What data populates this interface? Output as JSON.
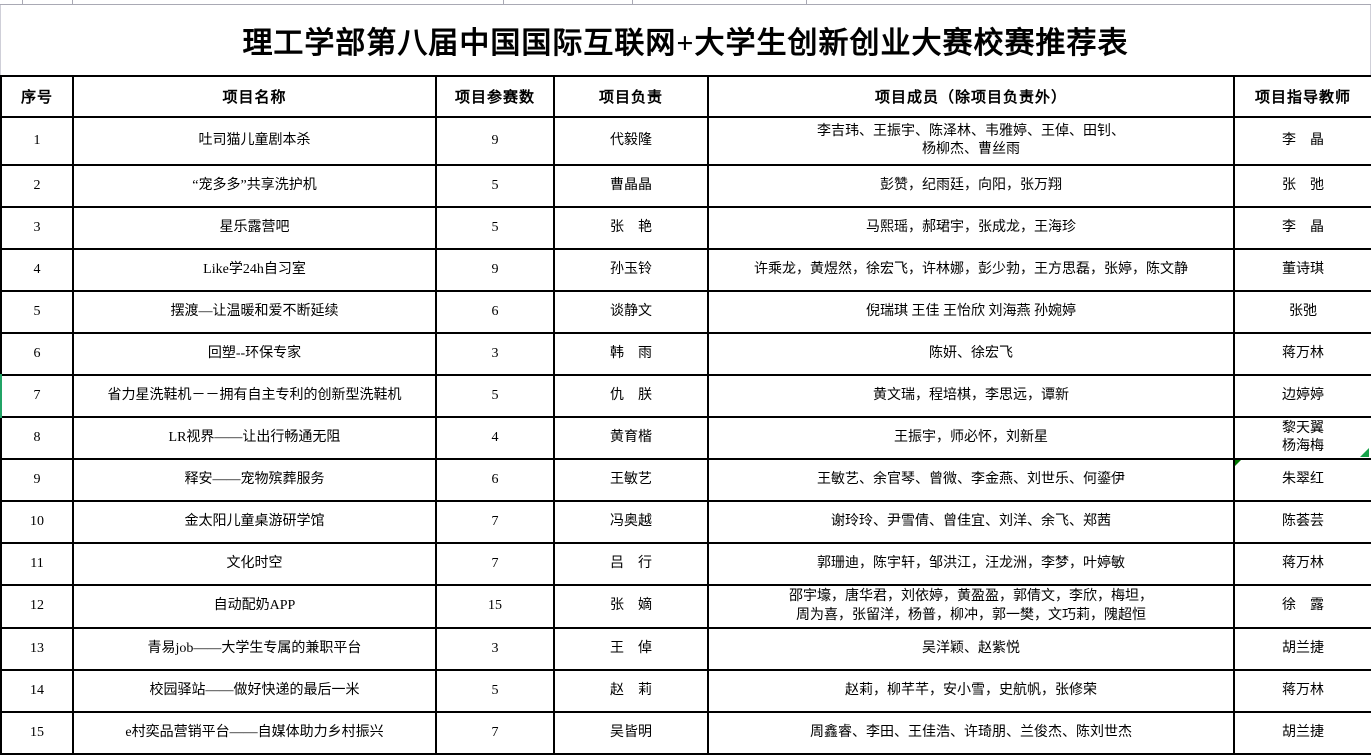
{
  "title": "理工学部第八届中国国际互联网+大学生创新创业大赛校赛推荐表",
  "table": {
    "columns": [
      "序号",
      "项目名称",
      "项目参赛数",
      "项目负责",
      "项目成员（除项目负责外）",
      "项目指导教师"
    ],
    "rows": [
      {
        "no": "1",
        "name": "吐司猫儿童剧本杀",
        "count": "9",
        "leader": "代毅隆",
        "members": "李吉玮、王振宇、陈泽林、韦雅婷、王倬、田钊、\n杨柳杰、曹丝雨",
        "advisor": "李　晶"
      },
      {
        "no": "2",
        "name": "“宠多多”共享洗护机",
        "count": "5",
        "leader": "曹晶晶",
        "members": "彭赞，纪雨廷，向阳，张万翔",
        "advisor": "张　弛"
      },
      {
        "no": "3",
        "name": "星乐露营吧",
        "count": "5",
        "leader": "张　艳",
        "members": "马熙瑶，郝珺宇，张成龙，王海珍",
        "advisor": "李　晶"
      },
      {
        "no": "4",
        "name": "Like学24h自习室",
        "count": "9",
        "leader": "孙玉铃",
        "members": "许乘龙，黄煜然，徐宏飞，许林娜，彭少勃，王方思磊，张婷，陈文静",
        "advisor": "董诗琪"
      },
      {
        "no": "5",
        "name": "摆渡—让温暖和爱不断延续",
        "count": "6",
        "leader": "谈静文",
        "members": "倪瑞琪 王佳 王怡欣 刘海燕 孙婉婷",
        "advisor": "张弛"
      },
      {
        "no": "6",
        "name": "回塑--环保专家",
        "count": "3",
        "leader": "韩　雨",
        "members": "陈妍、徐宏飞",
        "advisor": "蒋万林"
      },
      {
        "no": "7",
        "name": "省力星洗鞋机－－拥有自主专利的创新型洗鞋机",
        "count": "5",
        "leader": "仇　朕",
        "members": "黄文瑞，程培棋，李思远，谭新",
        "advisor": "边婷婷",
        "selected_edge": true
      },
      {
        "no": "8",
        "name": "LR视界——让出行畅通无阻",
        "count": "4",
        "leader": "黄育楷",
        "members": "王振宇，师必怀，刘新星",
        "advisor": "黎天翼\n杨海梅"
      },
      {
        "no": "9",
        "name": "释安——宠物殡葬服务",
        "count": "6",
        "leader": "王敏艺",
        "members": "王敏艺、余官琴、曾微、李金燕、刘世乐、何鎏伊",
        "advisor": "朱翠红",
        "advisor_marker": true
      },
      {
        "no": "10",
        "name": "金太阳儿童桌游研学馆",
        "count": "7",
        "leader": "冯奥越",
        "members": "谢玲玲、尹雪倩、曾佳宜、刘洋、余飞、郑茜",
        "advisor": "陈荟芸"
      },
      {
        "no": "11",
        "name": "文化时空",
        "count": "7",
        "leader": "吕　行",
        "members": "郭珊迪，陈宇轩，邹洪江，汪龙洲，李梦，叶婷敏",
        "advisor": "蒋万林"
      },
      {
        "no": "12",
        "name": "自动配奶APP",
        "count": "15",
        "leader": "张　嫡",
        "members": "邵宇壕，唐华君，刘依婷，黄盈盈，郭倩文，李欣，梅坦，\n周为喜，张留洋，杨普，柳冲，郭一樊，文巧莉，隗超恒",
        "advisor": "徐　露"
      },
      {
        "no": "13",
        "name": "青易job——大学生专属的兼职平台",
        "count": "3",
        "leader": "王　倬",
        "members": "吴洋颖、赵紫悦",
        "advisor": "胡兰捷"
      },
      {
        "no": "14",
        "name": "校园驿站——做好快递的最后一米",
        "count": "5",
        "leader": "赵　莉",
        "members": "赵莉，柳芊芊，安小雪，史航帆，张修荣",
        "advisor": "蒋万林"
      },
      {
        "no": "15",
        "name": "e村奕品营销平台——自媒体助力乡村振兴",
        "count": "7",
        "leader": "吴皆明",
        "members": "周鑫睿、李田、王佳浩、许琦朋、兰俊杰、陈刘世杰",
        "advisor": "胡兰捷"
      }
    ]
  },
  "colors": {
    "border_black": "#000000",
    "gridline_gray": "#a9a9b4",
    "selection_green": "#21a366",
    "comment_marker_green": "#007500",
    "fill_handle_green": "#17a34a"
  },
  "icons": {
    "comment_marker": "corner-triangle-icon",
    "fill_handle": "selection-handle-icon"
  }
}
